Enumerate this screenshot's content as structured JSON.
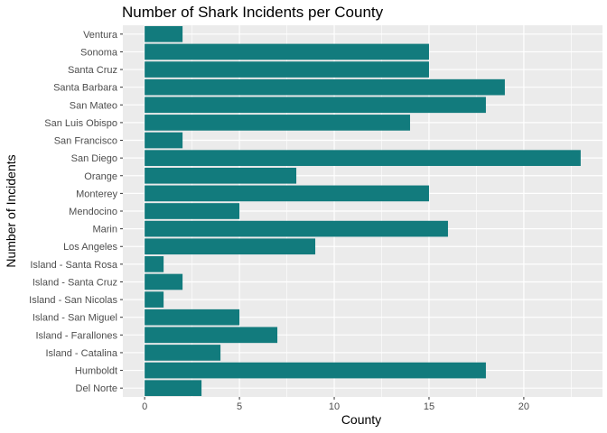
{
  "chart_data": {
    "type": "bar",
    "orientation": "horizontal",
    "title": "Number of Shark Incidents per County",
    "xlabel": "County",
    "ylabel": "Number of Incidents",
    "categories": [
      "Ventura",
      "Sonoma",
      "Santa Cruz",
      "Santa Barbara",
      "San Mateo",
      "San Luis Obispo",
      "San Francisco",
      "San Diego",
      "Orange",
      "Monterey",
      "Mendocino",
      "Marin",
      "Los Angeles",
      "Island - Santa Rosa",
      "Island - Santa Cruz",
      "Island - San Nicolas",
      "Island - San Miguel",
      "Island - Farallones",
      "Island - Catalina",
      "Humboldt",
      "Del Norte"
    ],
    "values": [
      2,
      15,
      15,
      19,
      18,
      14,
      2,
      23,
      8,
      15,
      5,
      16,
      9,
      1,
      2,
      1,
      5,
      7,
      4,
      18,
      3
    ],
    "xlim": [
      -1.15,
      24.15
    ],
    "xticks": [
      0,
      5,
      10,
      15,
      20
    ],
    "bar_color": "#127B7D",
    "panel_background": "#EBEBEB",
    "grid": true,
    "legend": "none"
  }
}
